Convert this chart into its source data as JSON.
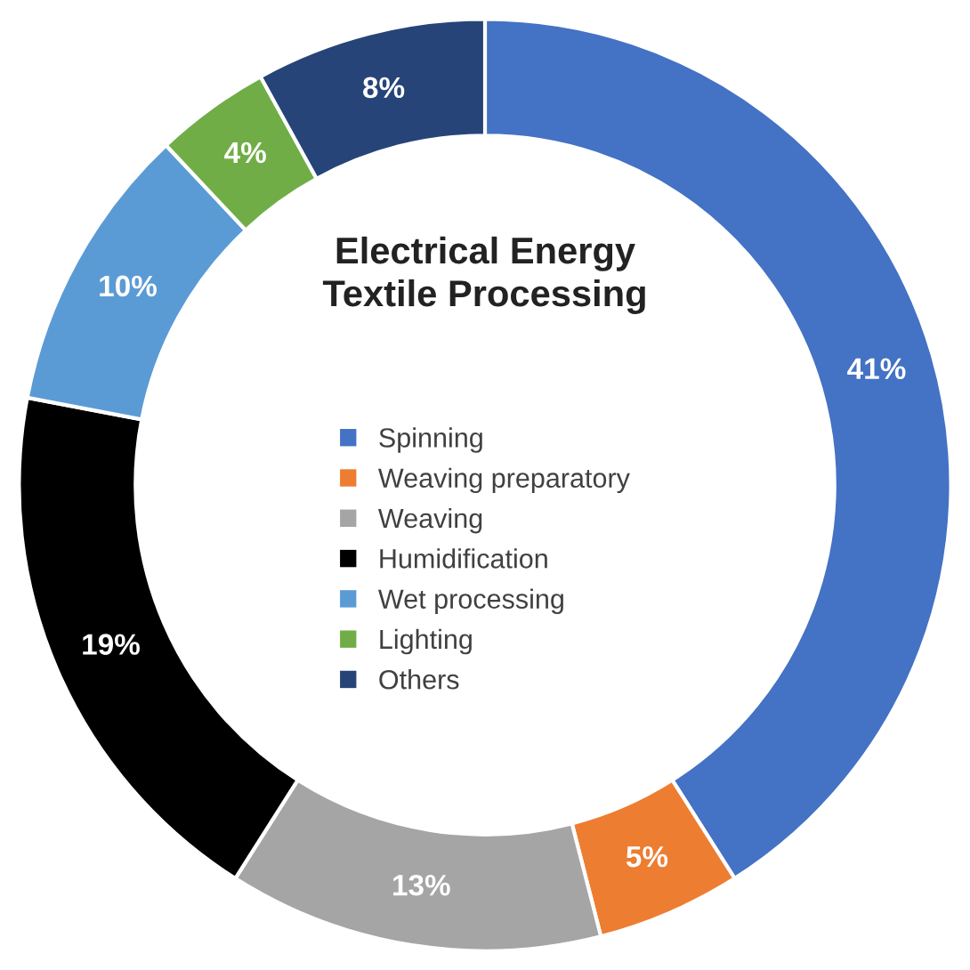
{
  "chart_data": {
    "type": "donut",
    "title": "Electrical Energy\nTextile Processing",
    "categories": [
      "Spinning",
      "Weaving preparatory",
      "Weaving",
      "Humidification",
      "Wet processing",
      "Lighting",
      "Others"
    ],
    "values": [
      41,
      5,
      13,
      19,
      10,
      4,
      8
    ],
    "colors": [
      "#4472c4",
      "#ed7d31",
      "#a5a5a5",
      "#000000",
      "#5b9bd5",
      "#70ad47",
      "#264478"
    ],
    "value_labels": [
      "41%",
      "5%",
      "13%",
      "19%",
      "10%",
      "4%",
      "8%"
    ],
    "legend": "center"
  }
}
